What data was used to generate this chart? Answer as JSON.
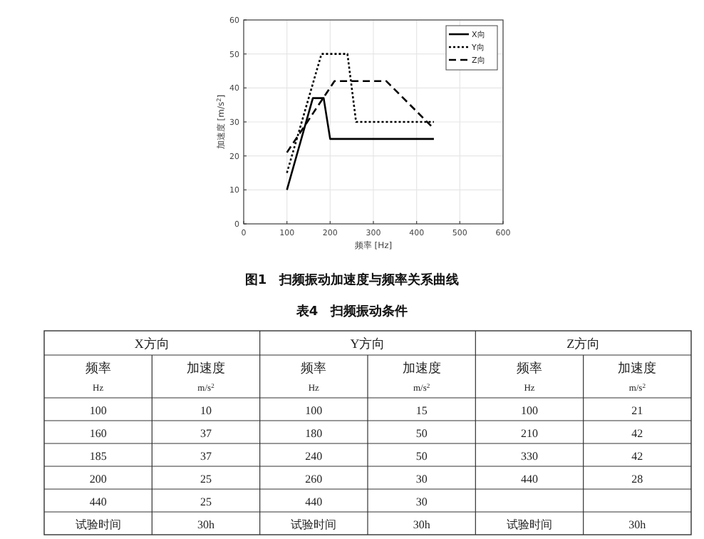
{
  "chart_data": [
    {
      "type": "line",
      "xlabel": "频率 [Hz]",
      "ylabel": "加速度 [m/s$^{2}$]",
      "xlim": [
        0,
        600
      ],
      "xticks": [
        0,
        100,
        200,
        300,
        400,
        500,
        600
      ],
      "ylim": [
        0,
        60
      ],
      "yticks": [
        0,
        10,
        20,
        30,
        40,
        50,
        60
      ],
      "grid": true,
      "legend": "top right",
      "marker": "none",
      "series": [
        {
          "name": "X向",
          "color": "#000000",
          "line_style": "solid",
          "x": [
            100,
            160,
            185,
            200,
            440
          ],
          "values": [
            10,
            37,
            37,
            25,
            25
          ]
        },
        {
          "name": "Y向",
          "color": "#000000",
          "line_style": "dotted",
          "x": [
            100,
            180,
            240,
            260,
            440
          ],
          "values": [
            15,
            50,
            50,
            30,
            30
          ]
        },
        {
          "name": "Z向",
          "color": "#000000",
          "line_style": "dashed",
          "x": [
            100,
            210,
            330,
            440
          ],
          "values": [
            21,
            42,
            42,
            28
          ]
        }
      ],
      "annotations": [
        "图1　扫频振动加速度与频率关系曲线"
      ]
    },
    {
      "type": "other",
      "title": "表4　扫频振动条件",
      "annotations": [
        "X方向",
        "Y方向",
        "Z方向",
        "频率",
        "加速度",
        "频率",
        "加速度",
        "频率",
        "加速度",
        "Hz",
        "m/s$^{2}$",
        "Hz",
        "m/s$^{2}$",
        "Hz",
        "m/s$^{2}$",
        "100",
        "10",
        "100",
        "15",
        "100",
        "21",
        "160",
        "37",
        "180",
        "50",
        "210",
        "42",
        "185",
        "37",
        "240",
        "50",
        "330",
        "42",
        "200",
        "25",
        "260",
        "30",
        "440",
        "28",
        "440",
        "25",
        "440",
        "30",
        "试验时间",
        "30h",
        "试验时间",
        "30h",
        "试验时间",
        "30h"
      ]
    }
  ]
}
